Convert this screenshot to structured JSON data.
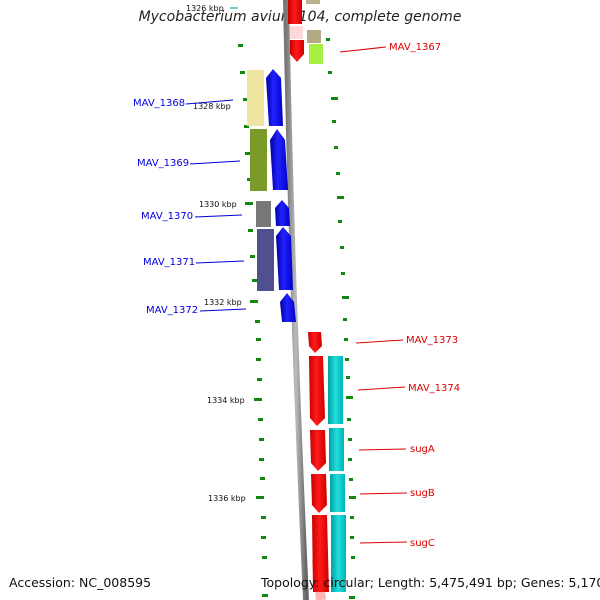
{
  "title": "Mycobacterium avium 104, complete genome",
  "footer": {
    "accession": "Accession: NC_008595",
    "summary": "Topology: circular; Length: 5,475,491 bp; Genes: 5,170"
  },
  "colors": {
    "forward_label": "#0000dd",
    "reverse_label": "#dd0000",
    "backbone": "#999999",
    "tick": "#118811",
    "cds_forward": "#0000ff",
    "cds_reverse": "#ff0000"
  },
  "tick_labels": [
    "1326 kbp",
    "1328 kbp",
    "1330 kbp",
    "1332 kbp",
    "1334 kbp",
    "1336 kbp"
  ],
  "genes": [
    {
      "name": "MAV_1367",
      "strand": "reverse"
    },
    {
      "name": "MAV_1368",
      "strand": "forward"
    },
    {
      "name": "MAV_1369",
      "strand": "forward"
    },
    {
      "name": "MAV_1370",
      "strand": "forward"
    },
    {
      "name": "MAV_1371",
      "strand": "forward"
    },
    {
      "name": "MAV_1372",
      "strand": "forward"
    },
    {
      "name": "MAV_1373",
      "strand": "reverse"
    },
    {
      "name": "MAV_1374",
      "strand": "reverse"
    },
    {
      "name": "sugA",
      "strand": "reverse"
    },
    {
      "name": "sugB",
      "strand": "reverse"
    },
    {
      "name": "sugC",
      "strand": "reverse"
    }
  ]
}
